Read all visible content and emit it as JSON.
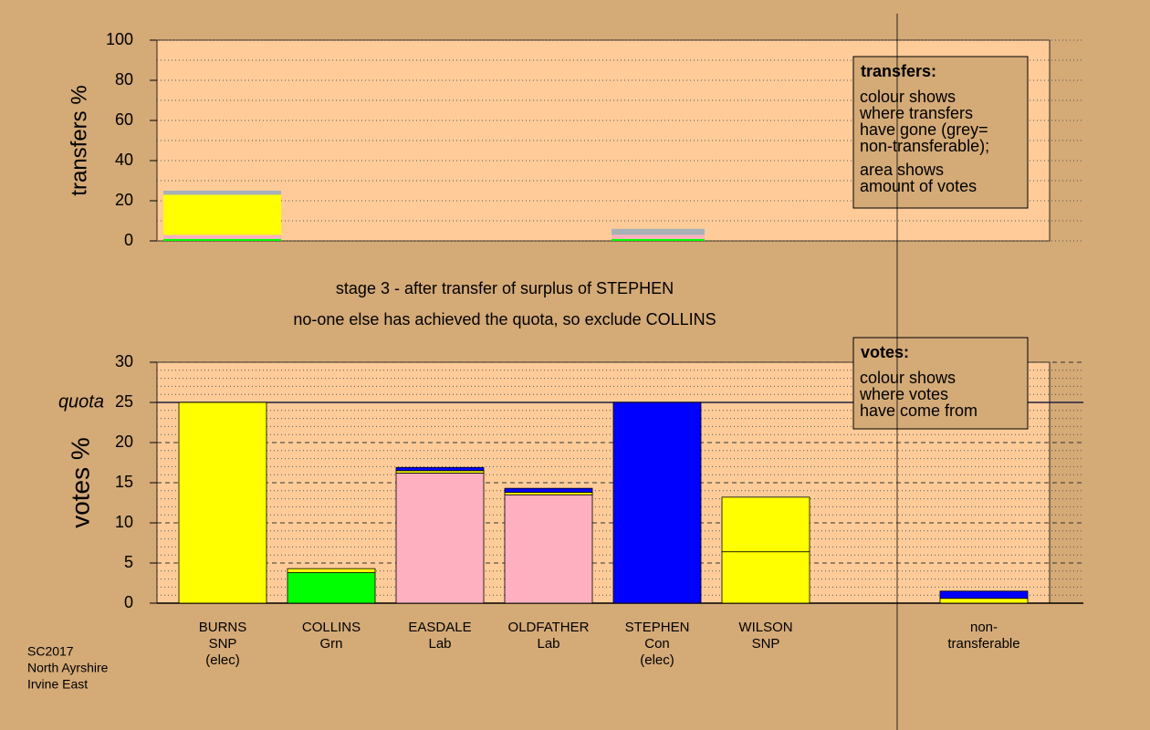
{
  "transfers_chart": {
    "type": "bar",
    "ylabel": "transfers %",
    "ylim": [
      0,
      100
    ],
    "yticks": [
      0,
      20,
      40,
      60,
      80,
      100
    ],
    "grid": true,
    "series": [
      {
        "color": "#00ff00",
        "values": [
          1,
          1
        ]
      },
      {
        "color": "#ffb0c0",
        "values": [
          2,
          2
        ]
      },
      {
        "color": "#ffff00",
        "values": [
          20,
          0
        ]
      },
      {
        "color": "#a8b0b8",
        "values": [
          2,
          3
        ]
      }
    ],
    "legend": {
      "title": "transfers:",
      "lines": [
        "colour shows",
        "where transfers",
        "have gone (grey=",
        "non-transferable);",
        "area shows",
        "amount of votes"
      ]
    }
  },
  "stage": [
    "stage 3 - after transfer of surplus of STEPHEN",
    "no-one else has achieved the quota, so exclude COLLINS"
  ],
  "chart_data": {
    "type": "bar",
    "ylabel": "votes %",
    "ylim": [
      0,
      30
    ],
    "yticks": [
      0,
      5,
      10,
      15,
      20,
      25,
      30
    ],
    "grid": true,
    "quota": {
      "label": "quota",
      "value": 25
    },
    "categories": [
      [
        "BURNS",
        "SNP",
        "(elec)"
      ],
      [
        "COLLINS",
        "Grn"
      ],
      [
        "EASDALE",
        "Lab"
      ],
      [
        "OLDFATHER",
        "Lab"
      ],
      [
        "STEPHEN",
        "Con",
        "(elec)"
      ],
      [
        "WILSON",
        "SNP"
      ],
      [
        "non-",
        "transferable"
      ]
    ],
    "series": [
      {
        "color": "#00ff00",
        "values": [
          0,
          3.8,
          0,
          0,
          0,
          0,
          0
        ]
      },
      {
        "color": "#ffb0c0",
        "values": [
          0,
          0,
          16.2,
          13.5,
          0,
          0,
          0
        ]
      },
      {
        "color": "#ffff00",
        "values": [
          25,
          0.5,
          0.3,
          0.3,
          0,
          6.4,
          0.6
        ]
      },
      {
        "color": "#ffff00",
        "values": [
          0,
          0,
          0,
          0,
          0,
          6.8,
          0
        ]
      },
      {
        "color": "#0000ff",
        "values": [
          0,
          0,
          0.4,
          0.5,
          25,
          0,
          0.9
        ]
      }
    ],
    "legend": {
      "title": "votes:",
      "lines": [
        "colour shows",
        "where votes",
        "have come from"
      ]
    }
  },
  "footer": [
    "SC2017",
    "North Ayrshire",
    "Irvine East"
  ]
}
